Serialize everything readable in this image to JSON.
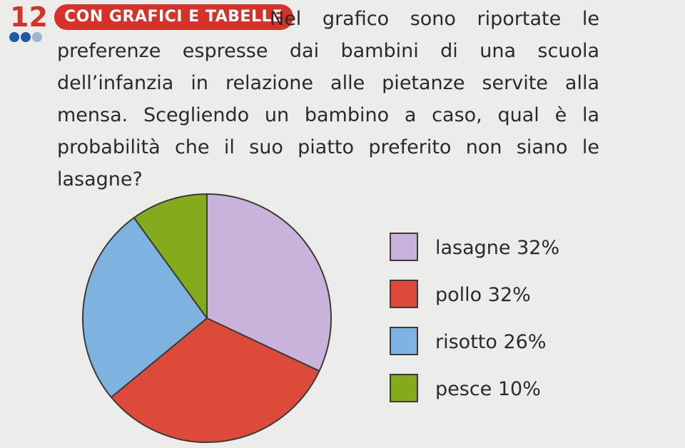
{
  "exercise": {
    "number": "12",
    "badge": "CON GRAFICI E TABELLE",
    "text": "Nel grafico sono riportate le preferenze espresse dai bambini di una scuola dell’infanzia in relazione alle pietanze servite alla mensa. Scegliendo un bambino a caso, qual è la probabilità che il suo piatto preferito non siano le lasagne?"
  },
  "colors": {
    "accent": "#d6322a",
    "difficulty_filled": "#1d5aa8",
    "difficulty_empty": "#9fb4d3"
  },
  "difficulty": {
    "level": 2,
    "max": 3
  },
  "chart_data": {
    "type": "pie",
    "title": "",
    "slices": [
      {
        "label": "lasagne 32%",
        "category": "lasagne",
        "value": 32,
        "color": "#c9b3da"
      },
      {
        "label": "pollo 32%",
        "category": "pollo",
        "value": 32,
        "color": "#de4a3a"
      },
      {
        "label": "risotto 26%",
        "category": "risotto",
        "value": 26,
        "color": "#7fb3df"
      },
      {
        "label": "pesce 10%",
        "category": "pesce",
        "value": 10,
        "color": "#84ab1e"
      }
    ],
    "start": "12 o'clock",
    "direction": "clockwise",
    "legend": "right"
  }
}
